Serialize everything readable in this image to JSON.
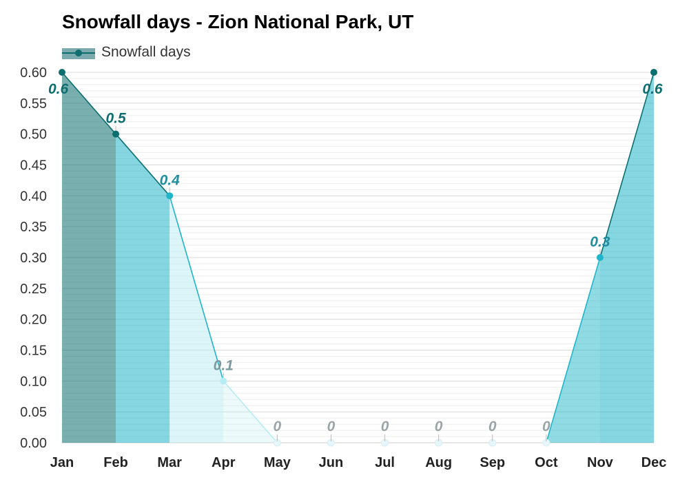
{
  "chart_data": {
    "type": "area",
    "title": "Snowfall days - Zion National Park, UT",
    "categories": [
      "Jan",
      "Feb",
      "Mar",
      "Apr",
      "May",
      "Jun",
      "Jul",
      "Aug",
      "Sep",
      "Oct",
      "Nov",
      "Dec"
    ],
    "series": [
      {
        "name": "Snowfall days",
        "values": [
          0.6,
          0.5,
          0.4,
          0.1,
          0,
          0,
          0,
          0,
          0,
          0,
          0.3,
          0.6
        ]
      }
    ],
    "data_labels": [
      "0.6",
      "0.5",
      "0.4",
      "0.1",
      "0",
      "0",
      "0",
      "0",
      "0",
      "0",
      "0.3",
      "0.6"
    ],
    "yticks": [
      "0.00",
      "0.05",
      "0.10",
      "0.15",
      "0.20",
      "0.25",
      "0.30",
      "0.35",
      "0.40",
      "0.45",
      "0.50",
      "0.55",
      "0.60"
    ],
    "ylim": [
      0,
      0.6
    ],
    "grid": true,
    "legend_position": "top-left",
    "colors": {
      "high": "#0d6e70",
      "mid": "#20b5c8",
      "low": "#b7ecf4",
      "label_zero": "#9aa5a8"
    }
  }
}
